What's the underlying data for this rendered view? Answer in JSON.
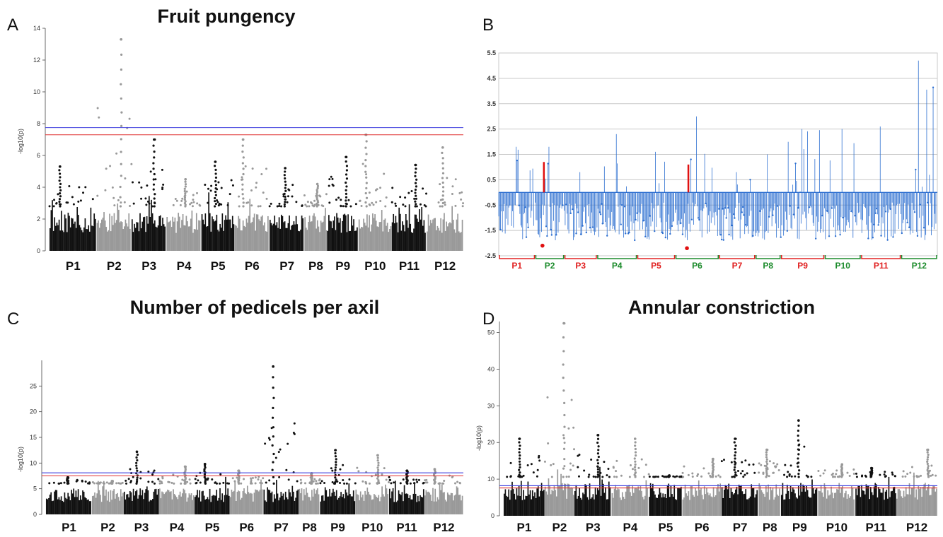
{
  "panels": {
    "A": {
      "letter": "A",
      "title": "Fruit pungency"
    },
    "B": {
      "letter": "B",
      "title": ""
    },
    "C": {
      "letter": "C",
      "title": "Number of pedicels per axil"
    },
    "D": {
      "letter": "D",
      "title": "Annular constriction"
    }
  },
  "chart_data": [
    {
      "id": "A",
      "type": "scatter",
      "title": "Fruit pungency",
      "ylabel": "-log10(p)",
      "ylim": [
        0,
        14
      ],
      "yticks": [
        "0",
        "2",
        "4",
        "6",
        "8",
        "10",
        "12",
        "14"
      ],
      "yticks_values": [
        0,
        2,
        4,
        6,
        8,
        10,
        12,
        14
      ],
      "categories": [
        "P1",
        "P2",
        "P3",
        "P4",
        "P5",
        "P6",
        "P7",
        "P8",
        "P9",
        "P10",
        "P11",
        "P12"
      ],
      "chr_colors": [
        "#111111",
        "#999999"
      ],
      "thresholds": [
        {
          "color": "#3b3bdd",
          "value": 7.75
        },
        {
          "color": "#e03030",
          "value": 7.3
        }
      ],
      "peaks": [
        {
          "chr": "P1",
          "value": 5.3
        },
        {
          "chr": "P2",
          "value": 13.3
        },
        {
          "chr": "P3",
          "value": 7.0
        },
        {
          "chr": "P4",
          "value": 4.5
        },
        {
          "chr": "P5",
          "value": 5.6
        },
        {
          "chr": "P6",
          "value": 7.0
        },
        {
          "chr": "P7",
          "value": 5.2
        },
        {
          "chr": "P8",
          "value": 4.2
        },
        {
          "chr": "P9",
          "value": 5.9
        },
        {
          "chr": "P10",
          "value": 7.3
        },
        {
          "chr": "P11",
          "value": 5.4
        },
        {
          "chr": "P12",
          "value": 6.5
        }
      ]
    },
    {
      "id": "B",
      "type": "line",
      "title": "",
      "ylim": [
        -2.5,
        5.5
      ],
      "yticks": [
        "5.5",
        "4.5",
        "3.5",
        "2.5",
        "1.5",
        "0.5",
        "-0.5",
        "-1.5",
        "-2.5"
      ],
      "yticks_values": [
        5.5,
        4.5,
        3.5,
        2.5,
        1.5,
        0.5,
        -0.5,
        -1.5,
        -2.5
      ],
      "grid": true,
      "categories": [
        "P1",
        "P2",
        "P3",
        "P4",
        "P5",
        "P6",
        "P7",
        "P8",
        "P9",
        "P10",
        "P11",
        "P12"
      ],
      "chr_label_colors": [
        "#e02020",
        "#1a8a2a",
        "#e02020",
        "#1a8a2a",
        "#e02020",
        "#1a8a2a",
        "#e02020",
        "#1a8a2a",
        "#e02020",
        "#1a8a2a",
        "#e02020",
        "#1a8a2a"
      ],
      "series_color": "#2d6fd0",
      "peaks": [
        {
          "chr": "P1",
          "value": 1.8
        },
        {
          "chr": "P2",
          "value": 1.8
        },
        {
          "chr": "P3",
          "value": 0.8
        },
        {
          "chr": "P4",
          "value": 2.3
        },
        {
          "chr": "P5",
          "value": 1.6
        },
        {
          "chr": "P6",
          "value": 3.0
        },
        {
          "chr": "P7",
          "value": 0.8
        },
        {
          "chr": "P8",
          "value": 1.5
        },
        {
          "chr": "P9",
          "value": 2.5
        },
        {
          "chr": "P10",
          "value": 2.5
        },
        {
          "chr": "P11",
          "value": 2.6
        },
        {
          "chr": "P12",
          "value": 5.2
        }
      ],
      "markers": [
        {
          "chr": "P2",
          "top": 1.2,
          "bottom": 0.0,
          "dot": -2.1
        },
        {
          "chr": "P6",
          "top": 1.1,
          "bottom": 0.0,
          "dot": -2.2
        }
      ]
    },
    {
      "id": "C",
      "type": "scatter",
      "title": "Number of pedicels per axil",
      "ylabel": "-log10(p)",
      "ylim": [
        0,
        30
      ],
      "yticks": [
        "0",
        "5",
        "10",
        "15",
        "20",
        "25"
      ],
      "yticks_values": [
        0,
        5,
        10,
        15,
        20,
        25
      ],
      "categories": [
        "P1",
        "P2",
        "P3",
        "P4",
        "P5",
        "P6",
        "P7",
        "P8",
        "P9",
        "P10",
        "P11",
        "P12"
      ],
      "chr_colors": [
        "#111111",
        "#999999"
      ],
      "thresholds": [
        {
          "color": "#3b3bdd",
          "value": 8.1
        },
        {
          "color": "#e03030",
          "value": 7.5
        }
      ],
      "peaks": [
        {
          "chr": "P1",
          "value": 7.2
        },
        {
          "chr": "P2",
          "value": 6.5
        },
        {
          "chr": "P3",
          "value": 12.2
        },
        {
          "chr": "P4",
          "value": 9.3
        },
        {
          "chr": "P5",
          "value": 9.8
        },
        {
          "chr": "P6",
          "value": 8.5
        },
        {
          "chr": "P7",
          "value": 28.8
        },
        {
          "chr": "P8",
          "value": 8.0
        },
        {
          "chr": "P9",
          "value": 12.5
        },
        {
          "chr": "P10",
          "value": 11.5
        },
        {
          "chr": "P11",
          "value": 8.5
        },
        {
          "chr": "P12",
          "value": 8.8
        }
      ]
    },
    {
      "id": "D",
      "type": "scatter",
      "title": "Annular constriction",
      "ylabel": "-log10(p)",
      "ylim": [
        0,
        53
      ],
      "yticks": [
        "0",
        "10",
        "20",
        "30",
        "40",
        "50"
      ],
      "yticks_values": [
        0,
        10,
        20,
        30,
        40,
        50
      ],
      "categories": [
        "P1",
        "P2",
        "P3",
        "P4",
        "P5",
        "P6",
        "P7",
        "P8",
        "P9",
        "P10",
        "P11",
        "P12"
      ],
      "chr_colors": [
        "#111111",
        "#999999"
      ],
      "thresholds": [
        {
          "color": "#3b3bdd",
          "value": 8.2
        },
        {
          "color": "#e03030",
          "value": 7.6
        }
      ],
      "peaks": [
        {
          "chr": "P1",
          "value": 21.0
        },
        {
          "chr": "P2",
          "value": 52.5
        },
        {
          "chr": "P3",
          "value": 22.0
        },
        {
          "chr": "P4",
          "value": 21.0
        },
        {
          "chr": "P5",
          "value": 11.0
        },
        {
          "chr": "P6",
          "value": 15.5
        },
        {
          "chr": "P7",
          "value": 21.0
        },
        {
          "chr": "P8",
          "value": 18.0
        },
        {
          "chr": "P9",
          "value": 26.0
        },
        {
          "chr": "P10",
          "value": 14.0
        },
        {
          "chr": "P11",
          "value": 13.0
        },
        {
          "chr": "P12",
          "value": 18.0
        }
      ]
    }
  ]
}
